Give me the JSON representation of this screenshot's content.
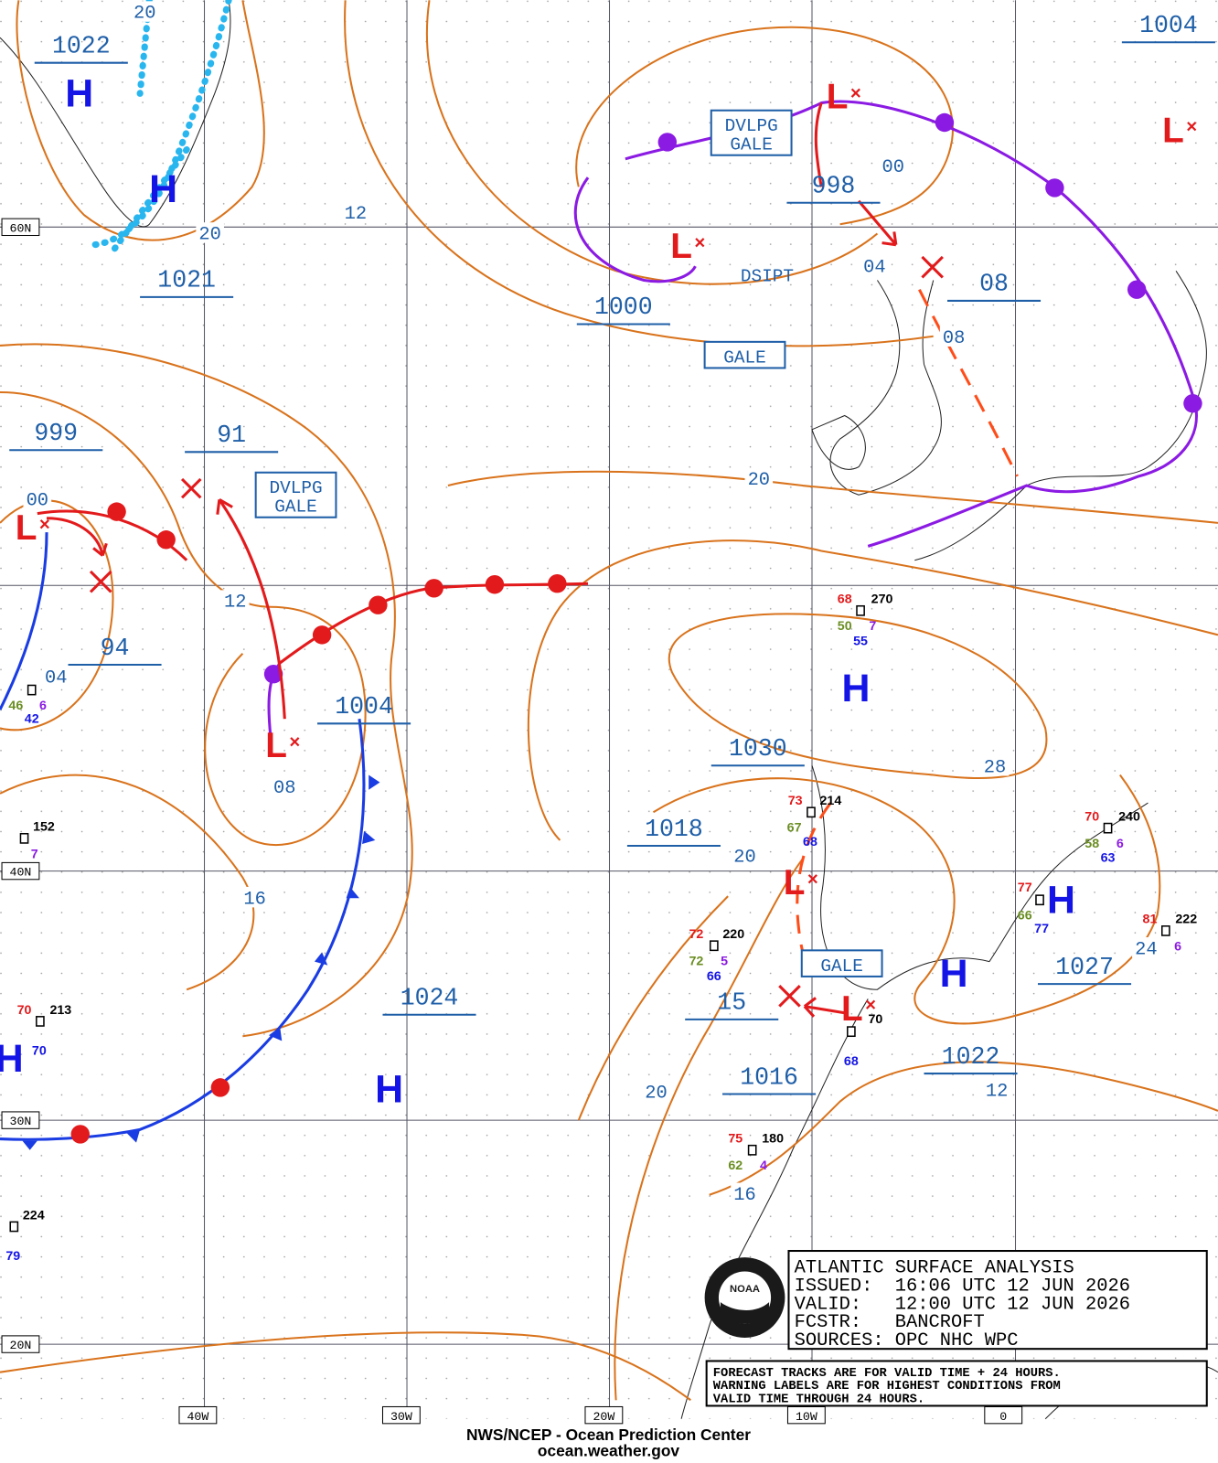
{
  "grid": {
    "lat_labels": [
      "60N",
      "40N",
      "30N",
      "20N"
    ],
    "lon_labels": [
      "40W",
      "30W",
      "20W",
      "10W",
      "0"
    ]
  },
  "pressure_labels": [
    "1022",
    "1021",
    "999",
    "91",
    "94",
    "1004",
    "1004",
    "1000",
    "998",
    "08",
    "1030",
    "1018",
    "1024",
    "15",
    "1016",
    "1022",
    "1027"
  ],
  "isobar_labels": [
    "20",
    "20",
    "12",
    "00",
    "04",
    "08",
    "20",
    "00",
    "12",
    "04",
    "08",
    "28",
    "16",
    "20",
    "20",
    "16",
    "12",
    "24"
  ],
  "centers": [
    "H",
    "H",
    "H",
    "H",
    "H",
    "H",
    "H",
    "L",
    "L",
    "L",
    "L",
    "L",
    "L",
    "L"
  ],
  "warnings": [
    [
      "DVLPG",
      "GALE"
    ],
    [
      "DVLPG",
      "GALE"
    ],
    [
      "GALE"
    ],
    [
      "GALE"
    ]
  ],
  "status_label": "DSIPT",
  "stations": [
    [
      "68",
      "270",
      "50",
      "7",
      "55"
    ],
    [
      "73",
      "214",
      "67",
      "68"
    ],
    [
      "72",
      "220",
      "72",
      "5",
      "66"
    ],
    [
      "70",
      "240",
      "58",
      "6",
      "63"
    ],
    [
      "81",
      "222",
      "6"
    ],
    [
      "75",
      "180",
      "62",
      "4"
    ],
    [
      "152",
      "7"
    ],
    [
      "70",
      "213",
      "70"
    ],
    [
      "224",
      "79"
    ],
    [
      "70",
      "68"
    ],
    [
      "46",
      "6",
      "42"
    ],
    [
      "77",
      "66",
      "77"
    ]
  ],
  "info_box": [
    "ATLANTIC SURFACE ANALYSIS",
    "ISSUED:  16:06 UTC 12 JUN 2026",
    "VALID:   12:00 UTC 12 JUN 2026",
    "FCSTR:   BANCROFT",
    "SOURCES: OPC NHC WPC"
  ],
  "note": [
    "FORECAST TRACKS ARE FOR VALID TIME + 24 HOURS.",
    "WARNING LABELS ARE FOR HIGHEST CONDITIONS FROM",
    "VALID TIME THROUGH 24 HOURS."
  ],
  "logo": "NOAA",
  "footer": {
    "agency": "NWS/NCEP - Ocean Prediction Center",
    "url": "ocean.weather.gov"
  }
}
